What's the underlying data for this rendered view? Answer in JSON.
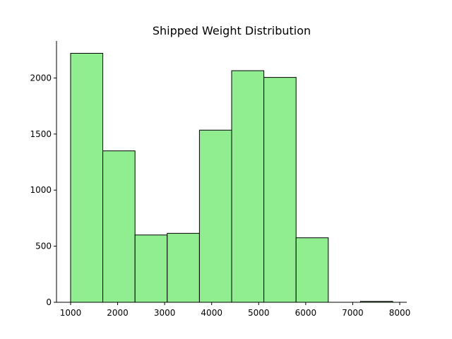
{
  "chart_data": {
    "type": "bar",
    "subtype": "histogram",
    "title": "Shipped Weight Distribution",
    "xlabel": "",
    "ylabel": "",
    "bin_edges": [
      1000,
      1685,
      2370,
      3055,
      3740,
      4425,
      5110,
      5795,
      6480,
      7165,
      7850
    ],
    "values": [
      2220,
      1350,
      600,
      615,
      1535,
      2065,
      2005,
      575,
      0,
      8
    ],
    "xlim": [
      700,
      8150
    ],
    "ylim": [
      0,
      2330
    ],
    "xticks": [
      1000,
      2000,
      3000,
      4000,
      5000,
      6000,
      7000,
      8000
    ],
    "yticks": [
      0,
      500,
      1000,
      1500,
      2000
    ],
    "bar_color": "#90ee90",
    "edge_color": "#000000",
    "grid": false,
    "spines": [
      "left",
      "bottom"
    ]
  }
}
